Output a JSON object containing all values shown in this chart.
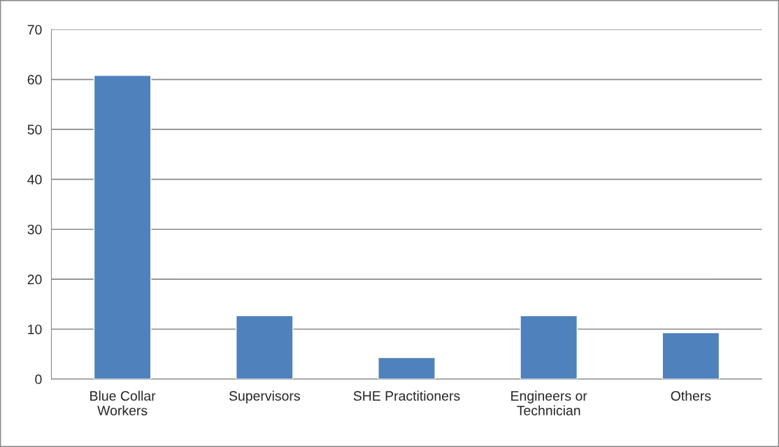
{
  "chart_data": {
    "type": "bar",
    "categories": [
      "Blue Collar\nWorkers",
      "Supervisors",
      "SHE Practitioners",
      "Engineers or\nTechnician",
      "Others"
    ],
    "values": [
      60.8,
      12.7,
      4.3,
      12.7,
      9.3
    ],
    "color": "#4f81bd",
    "ylim": [
      0,
      70
    ],
    "yticks": [
      0,
      10,
      20,
      30,
      40,
      50,
      60,
      70
    ],
    "grid": "y"
  }
}
